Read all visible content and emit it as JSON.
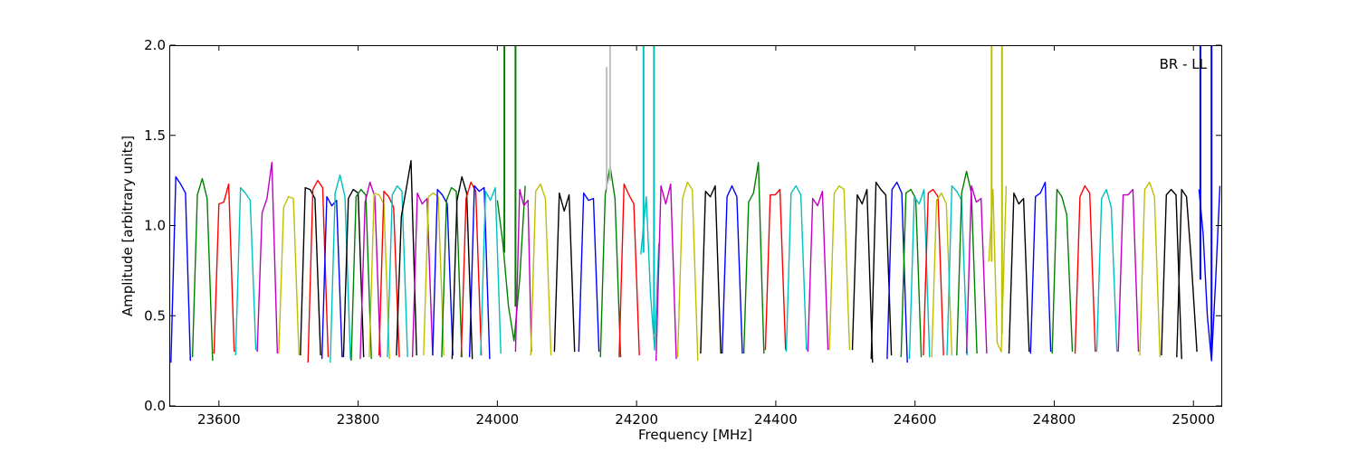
{
  "chart_data": {
    "type": "line",
    "title": "",
    "annotation": "BR - LL",
    "xlabel": "Frequency [MHz]",
    "ylabel": "Amplitude [arbitrary units]",
    "xlim": [
      23530,
      25040
    ],
    "ylim": [
      0.0,
      2.0
    ],
    "xticks": [
      23600,
      23800,
      24000,
      24200,
      24400,
      24600,
      24800,
      25000
    ],
    "yticks": [
      0.0,
      0.5,
      1.0,
      1.5,
      2.0
    ],
    "xtick_labels": [
      "23600",
      "23800",
      "24000",
      "24200",
      "24400",
      "24600",
      "24800",
      "25000"
    ],
    "ytick_labels": [
      "0.0",
      "0.5",
      "1.0",
      "1.5",
      "2.0"
    ],
    "grid": false,
    "colors": {
      "blue": "#0000ff",
      "green": "#007f00",
      "red": "#ff0000",
      "cyan": "#00bfbf",
      "magenta": "#bf00bf",
      "olive": "#bfbf00",
      "black": "#000000",
      "gray": "#bfbfbf"
    },
    "series": [
      {
        "color": "blue",
        "x": [
          23531,
          23538,
          23545,
          23552,
          23559
        ],
        "y": [
          0.24,
          1.27,
          1.23,
          1.18,
          0.25
        ]
      },
      {
        "color": "green",
        "x": [
          23562,
          23569,
          23576,
          23583,
          23591
        ],
        "y": [
          0.27,
          1.17,
          1.26,
          1.15,
          0.25
        ]
      },
      {
        "color": "red",
        "x": [
          23593,
          23600,
          23607,
          23614,
          23622
        ],
        "y": [
          0.29,
          1.12,
          1.13,
          1.23,
          0.3
        ]
      },
      {
        "color": "cyan",
        "x": [
          23624,
          23631,
          23638,
          23645,
          23653
        ],
        "y": [
          0.28,
          1.21,
          1.18,
          1.14,
          0.31
        ]
      },
      {
        "color": "magenta",
        "x": [
          23655,
          23662,
          23669,
          23676,
          23684
        ],
        "y": [
          0.3,
          1.07,
          1.15,
          1.35,
          0.29
        ]
      },
      {
        "color": "olive",
        "x": [
          23686,
          23693,
          23700,
          23707,
          23715
        ],
        "y": [
          0.29,
          1.1,
          1.16,
          1.15,
          0.28
        ]
      },
      {
        "color": "black",
        "x": [
          23717,
          23724,
          23731,
          23738,
          23746
        ],
        "y": [
          0.28,
          1.21,
          1.2,
          1.15,
          0.28
        ]
      },
      {
        "color": "red",
        "x": [
          23728,
          23735,
          23742,
          23749,
          23757
        ],
        "y": [
          0.24,
          1.2,
          1.25,
          1.21,
          0.27
        ]
      },
      {
        "color": "blue",
        "x": [
          23748,
          23755,
          23762,
          23769,
          23777
        ],
        "y": [
          0.26,
          1.16,
          1.11,
          1.14,
          0.27
        ]
      },
      {
        "color": "cyan",
        "x": [
          23760,
          23767,
          23774,
          23781,
          23789
        ],
        "y": [
          0.24,
          1.18,
          1.28,
          1.16,
          0.26
        ]
      },
      {
        "color": "black",
        "x": [
          23779,
          23786,
          23793,
          23800,
          23808
        ],
        "y": [
          0.27,
          1.15,
          1.2,
          1.18,
          0.27
        ]
      },
      {
        "color": "green",
        "x": [
          23790,
          23797,
          23804,
          23811,
          23819
        ],
        "y": [
          0.25,
          1.16,
          1.2,
          1.17,
          0.26
        ]
      },
      {
        "color": "magenta",
        "x": [
          23803,
          23810,
          23817,
          23824,
          23832
        ],
        "y": [
          0.26,
          1.13,
          1.24,
          1.16,
          0.27
        ]
      },
      {
        "color": "olive",
        "x": [
          23816,
          23823,
          23830,
          23837,
          23845
        ],
        "y": [
          0.27,
          1.18,
          1.17,
          1.12,
          0.26
        ]
      },
      {
        "color": "red",
        "x": [
          23830,
          23837,
          23844,
          23851,
          23859
        ],
        "y": [
          0.28,
          1.19,
          1.16,
          1.1,
          0.27
        ]
      },
      {
        "color": "cyan",
        "x": [
          23842,
          23849,
          23856,
          23863,
          23871
        ],
        "y": [
          0.27,
          1.17,
          1.22,
          1.19,
          0.27
        ]
      },
      {
        "color": "black",
        "x": [
          23855,
          23862,
          23869,
          23876,
          23884
        ],
        "y": [
          0.28,
          1.05,
          1.2,
          1.36,
          0.28
        ]
      },
      {
        "color": "magenta",
        "x": [
          23878,
          23885,
          23892,
          23899,
          23907
        ],
        "y": [
          0.27,
          1.18,
          1.12,
          1.15,
          0.28
        ]
      },
      {
        "color": "olive",
        "x": [
          23894,
          23901,
          23908,
          23915,
          23923
        ],
        "y": [
          0.28,
          1.16,
          1.18,
          1.16,
          0.28
        ]
      },
      {
        "color": "blue",
        "x": [
          23907,
          23914,
          23921,
          23928,
          23936
        ],
        "y": [
          0.28,
          1.2,
          1.17,
          1.12,
          0.28
        ]
      },
      {
        "color": "green",
        "x": [
          23920,
          23927,
          23934,
          23941,
          23949
        ],
        "y": [
          0.27,
          1.14,
          1.21,
          1.19,
          0.27
        ]
      },
      {
        "color": "black",
        "x": [
          23935,
          23942,
          23949,
          23956,
          23964
        ],
        "y": [
          0.26,
          1.14,
          1.27,
          1.18,
          0.26
        ]
      },
      {
        "color": "red",
        "x": [
          23948,
          23955,
          23962,
          23969,
          23977
        ],
        "y": [
          0.27,
          1.15,
          1.24,
          1.19,
          0.28
        ]
      },
      {
        "color": "blue",
        "x": [
          23960,
          23967,
          23974,
          23981,
          23989
        ],
        "y": [
          0.27,
          1.22,
          1.19,
          1.21,
          0.26
        ]
      },
      {
        "color": "cyan",
        "x": [
          23976,
          23983,
          23990,
          23997,
          24005
        ],
        "y": [
          0.28,
          1.19,
          1.14,
          1.21,
          0.29
        ]
      },
      {
        "color": "green",
        "x": [
          24000,
          24008,
          24016,
          24024,
          24032,
          24040
        ],
        "y": [
          1.14,
          0.9,
          0.55,
          0.36,
          0.7,
          1.22
        ]
      },
      {
        "color": "magenta",
        "x": [
          24026,
          24032,
          24038,
          24044,
          24049
        ],
        "y": [
          0.3,
          1.2,
          1.11,
          1.14,
          0.3
        ]
      },
      {
        "color": "olive",
        "x": [
          24048,
          24055,
          24062,
          24069,
          24077
        ],
        "y": [
          0.28,
          1.19,
          1.23,
          1.15,
          0.28
        ]
      },
      {
        "color": "black",
        "x": [
          24082,
          24089,
          24096,
          24103,
          24111
        ],
        "y": [
          0.3,
          1.18,
          1.08,
          1.17,
          0.3
        ]
      },
      {
        "color": "blue",
        "x": [
          24117,
          24124,
          24131,
          24138,
          24146
        ],
        "y": [
          0.3,
          1.18,
          1.14,
          1.15,
          0.3
        ]
      },
      {
        "color": "green",
        "x": [
          24148,
          24155,
          24162,
          24169,
          24177
        ],
        "y": [
          0.27,
          1.17,
          1.33,
          1.15,
          0.27
        ]
      },
      {
        "color": "red",
        "x": [
          24175,
          24182,
          24189,
          24196,
          24204
        ],
        "y": [
          0.27,
          1.23,
          1.17,
          1.12,
          0.28
        ]
      },
      {
        "color": "cyan",
        "x": [
          24206,
          24214,
          24220,
          24226,
          24232
        ],
        "y": [
          0.84,
          1.16,
          0.62,
          0.31,
          0.9
        ]
      },
      {
        "color": "magenta",
        "x": [
          24228,
          24235,
          24242,
          24249,
          24257
        ],
        "y": [
          0.25,
          1.22,
          1.12,
          1.23,
          0.26
        ]
      },
      {
        "color": "olive",
        "x": [
          24259,
          24266,
          24273,
          24280,
          24288
        ],
        "y": [
          0.27,
          1.15,
          1.24,
          1.2,
          0.25
        ]
      },
      {
        "color": "black",
        "x": [
          24292,
          24299,
          24306,
          24313,
          24321
        ],
        "y": [
          0.29,
          1.19,
          1.16,
          1.22,
          0.29
        ]
      },
      {
        "color": "blue",
        "x": [
          24323,
          24330,
          24337,
          24344,
          24352
        ],
        "y": [
          0.29,
          1.16,
          1.22,
          1.16,
          0.29
        ]
      },
      {
        "color": "green",
        "x": [
          24354,
          24361,
          24368,
          24375,
          24383
        ],
        "y": [
          0.29,
          1.13,
          1.18,
          1.35,
          0.29
        ]
      },
      {
        "color": "red",
        "x": [
          24385,
          24392,
          24399,
          24406,
          24414
        ],
        "y": [
          0.31,
          1.17,
          1.17,
          1.2,
          0.31
        ]
      },
      {
        "color": "cyan",
        "x": [
          24415,
          24422,
          24429,
          24436,
          24444
        ],
        "y": [
          0.3,
          1.18,
          1.22,
          1.17,
          0.31
        ]
      },
      {
        "color": "magenta",
        "x": [
          24446,
          24453,
          24460,
          24467,
          24475
        ],
        "y": [
          0.3,
          1.15,
          1.11,
          1.19,
          0.31
        ]
      },
      {
        "color": "olive",
        "x": [
          24477,
          24484,
          24491,
          24498,
          24506
        ],
        "y": [
          0.31,
          1.18,
          1.22,
          1.2,
          0.31
        ]
      },
      {
        "color": "black",
        "x": [
          24510,
          24517,
          24524,
          24531,
          24539
        ],
        "y": [
          0.31,
          1.17,
          1.12,
          1.2,
          0.24
        ]
      },
      {
        "color": "black",
        "x": [
          24537,
          24544,
          24551,
          24558,
          24566
        ],
        "y": [
          0.26,
          1.24,
          1.2,
          1.17,
          0.28
        ]
      },
      {
        "color": "blue",
        "x": [
          24560,
          24567,
          24574,
          24581,
          24589
        ],
        "y": [
          0.26,
          1.2,
          1.24,
          1.18,
          0.24
        ]
      },
      {
        "color": "green",
        "x": [
          24580,
          24587,
          24594,
          24601,
          24609
        ],
        "y": [
          0.27,
          1.18,
          1.2,
          1.15,
          0.27
        ]
      },
      {
        "color": "cyan",
        "x": [
          24592,
          24599,
          24606,
          24613,
          24621
        ],
        "y": [
          0.26,
          1.16,
          1.12,
          1.2,
          0.27
        ]
      },
      {
        "color": "red",
        "x": [
          24612,
          24619,
          24626,
          24633,
          24641
        ],
        "y": [
          0.28,
          1.18,
          1.2,
          1.16,
          0.28
        ]
      },
      {
        "color": "olive",
        "x": [
          24624,
          24631,
          24638,
          24645,
          24653
        ],
        "y": [
          0.27,
          1.14,
          1.18,
          1.12,
          0.28
        ]
      },
      {
        "color": "cyan",
        "x": [
          24646,
          24653,
          24660,
          24667,
          24675
        ],
        "y": [
          0.28,
          1.22,
          1.19,
          1.14,
          0.28
        ]
      },
      {
        "color": "green",
        "x": [
          24660,
          24667,
          24674,
          24681,
          24689
        ],
        "y": [
          0.28,
          1.18,
          1.3,
          1.18,
          0.29
        ]
      },
      {
        "color": "magenta",
        "x": [
          24674,
          24681,
          24688,
          24695,
          24703
        ],
        "y": [
          0.29,
          1.22,
          1.13,
          1.15,
          0.29
        ]
      },
      {
        "color": "olive",
        "x": [
          24706,
          24712,
          24718,
          24724,
          24731
        ],
        "y": [
          0.8,
          1.2,
          0.35,
          0.3,
          1.22
        ]
      },
      {
        "color": "black",
        "x": [
          24735,
          24742,
          24749,
          24756,
          24764
        ],
        "y": [
          0.29,
          1.18,
          1.12,
          1.15,
          0.3
        ]
      },
      {
        "color": "blue",
        "x": [
          24766,
          24773,
          24780,
          24787,
          24795
        ],
        "y": [
          0.29,
          1.16,
          1.18,
          1.24,
          0.3
        ]
      },
      {
        "color": "green",
        "x": [
          24797,
          24804,
          24811,
          24818,
          24826
        ],
        "y": [
          0.29,
          1.2,
          1.16,
          1.06,
          0.3
        ]
      },
      {
        "color": "red",
        "x": [
          24830,
          24837,
          24844,
          24851,
          24859
        ],
        "y": [
          0.29,
          1.16,
          1.22,
          1.18,
          0.3
        ]
      },
      {
        "color": "cyan",
        "x": [
          24861,
          24868,
          24875,
          24882,
          24890
        ],
        "y": [
          0.3,
          1.15,
          1.2,
          1.1,
          0.3
        ]
      },
      {
        "color": "magenta",
        "x": [
          24892,
          24899,
          24906,
          24913,
          24921
        ],
        "y": [
          0.3,
          1.17,
          1.17,
          1.2,
          0.3
        ]
      },
      {
        "color": "olive",
        "x": [
          24923,
          24930,
          24937,
          24944,
          24952
        ],
        "y": [
          0.28,
          1.2,
          1.24,
          1.16,
          0.27
        ]
      },
      {
        "color": "black",
        "x": [
          24954,
          24961,
          24968,
          24975,
          24983
        ],
        "y": [
          0.28,
          1.17,
          1.2,
          1.17,
          0.26
        ]
      },
      {
        "color": "black",
        "x": [
          24976,
          24983,
          24990,
          24997,
          25005
        ],
        "y": [
          0.27,
          1.2,
          1.16,
          0.8,
          0.3
        ]
      },
      {
        "color": "blue",
        "x": [
          25008,
          25014,
          25020,
          25026,
          25032,
          25038
        ],
        "y": [
          1.2,
          0.95,
          0.5,
          0.25,
          0.7,
          1.22
        ]
      }
    ],
    "spikes": [
      {
        "color": "green",
        "x": 24010,
        "y_from": 0.85,
        "y_to": 2.0
      },
      {
        "color": "green",
        "x": 24026,
        "y_from": 0.55,
        "y_to": 2.0
      },
      {
        "color": "gray",
        "x": 24157,
        "y_from": 1.2,
        "y_to": 1.88
      },
      {
        "color": "gray",
        "x": 24162,
        "y_from": 1.25,
        "y_to": 2.0
      },
      {
        "color": "cyan",
        "x": 24210,
        "y_from": 0.85,
        "y_to": 2.0
      },
      {
        "color": "cyan",
        "x": 24225,
        "y_from": 0.4,
        "y_to": 2.0
      },
      {
        "color": "olive",
        "x": 24710,
        "y_from": 0.8,
        "y_to": 2.0
      },
      {
        "color": "olive",
        "x": 24725,
        "y_from": 0.4,
        "y_to": 2.0
      },
      {
        "color": "blue",
        "x": 25010,
        "y_from": 0.7,
        "y_to": 2.0
      },
      {
        "color": "blue",
        "x": 25026,
        "y_from": 0.3,
        "y_to": 2.0
      }
    ]
  }
}
